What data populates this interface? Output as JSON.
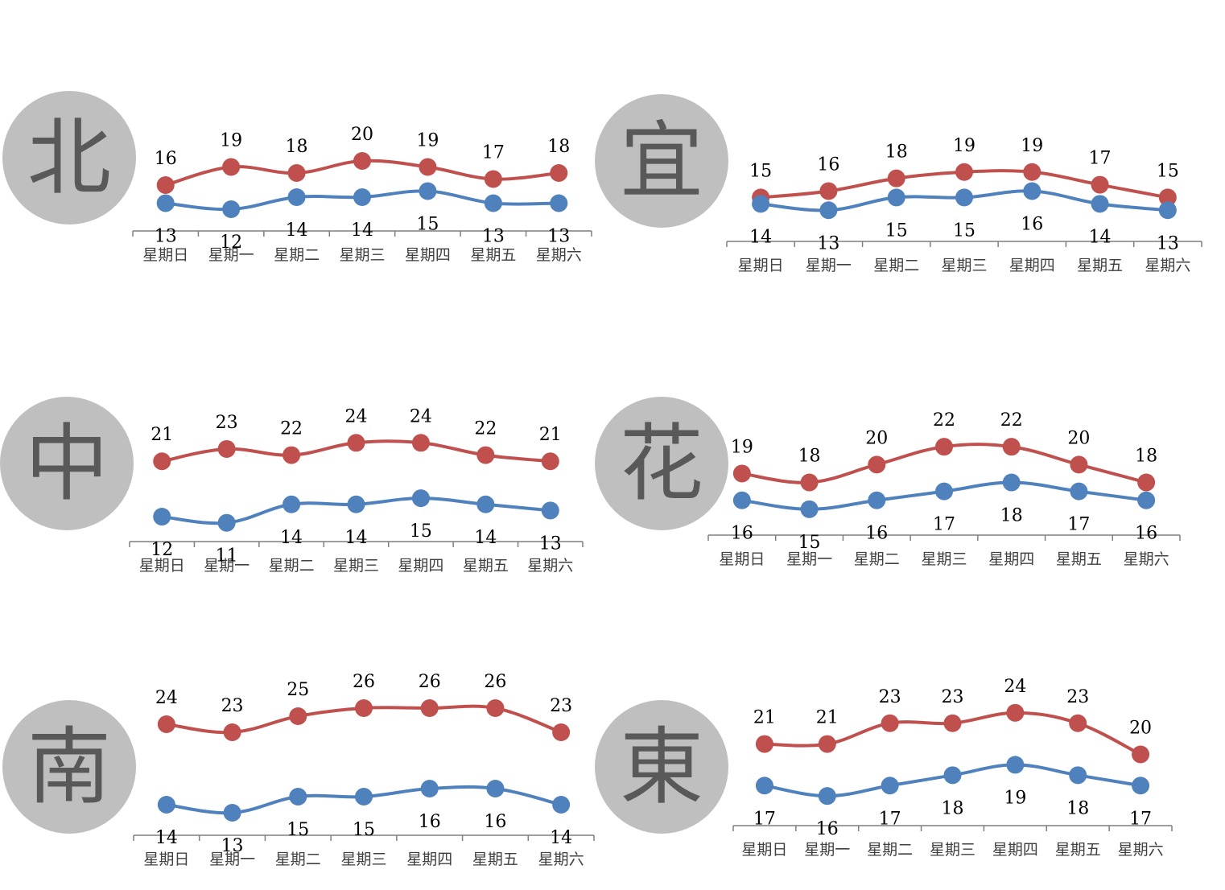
{
  "colors": {
    "high": "#c0504d",
    "low": "#4f81bd",
    "axis": "#7f7f7f",
    "badge": "#bfbfbf",
    "badge_text": "#595959"
  },
  "chart_data": [
    {
      "type": "line",
      "region": "北",
      "categories": [
        "星期日",
        "星期一",
        "星期二",
        "星期三",
        "星期四",
        "星期五",
        "星期六"
      ],
      "series": [
        {
          "key": "high",
          "values": [
            16,
            19,
            18,
            20,
            19,
            17,
            18
          ]
        },
        {
          "key": "low",
          "values": [
            13,
            12,
            14,
            14,
            15,
            13,
            13
          ]
        }
      ],
      "ylim": [
        10,
        22
      ]
    },
    {
      "type": "line",
      "region": "宜",
      "categories": [
        "星期日",
        "星期一",
        "星期二",
        "星期三",
        "星期四",
        "星期五",
        "星期六"
      ],
      "series": [
        {
          "key": "high",
          "values": [
            15,
            16,
            18,
            19,
            19,
            17,
            15
          ]
        },
        {
          "key": "low",
          "values": [
            14,
            13,
            15,
            15,
            16,
            14,
            13
          ]
        }
      ],
      "ylim": [
        10,
        22
      ]
    },
    {
      "type": "line",
      "region": "中",
      "categories": [
        "星期日",
        "星期一",
        "星期二",
        "星期三",
        "星期四",
        "星期五",
        "星期六"
      ],
      "series": [
        {
          "key": "high",
          "values": [
            21,
            23,
            22,
            24,
            24,
            22,
            21
          ]
        },
        {
          "key": "low",
          "values": [
            12,
            11,
            14,
            14,
            15,
            14,
            13
          ]
        }
      ],
      "ylim": [
        9,
        26
      ]
    },
    {
      "type": "line",
      "region": "花",
      "categories": [
        "星期日",
        "星期一",
        "星期二",
        "星期三",
        "星期四",
        "星期五",
        "星期六"
      ],
      "series": [
        {
          "key": "high",
          "values": [
            19,
            18,
            20,
            22,
            22,
            20,
            18
          ]
        },
        {
          "key": "low",
          "values": [
            16,
            15,
            16,
            17,
            18,
            17,
            16
          ]
        }
      ],
      "ylim": [
        13,
        24
      ]
    },
    {
      "type": "line",
      "region": "南",
      "categories": [
        "星期日",
        "星期一",
        "星期二",
        "星期三",
        "星期四",
        "星期五",
        "星期六"
      ],
      "series": [
        {
          "key": "high",
          "values": [
            24,
            23,
            25,
            26,
            26,
            26,
            23
          ]
        },
        {
          "key": "low",
          "values": [
            14,
            13,
            15,
            15,
            16,
            16,
            14
          ]
        }
      ],
      "ylim": [
        11,
        28
      ]
    },
    {
      "type": "line",
      "region": "東",
      "categories": [
        "星期日",
        "星期一",
        "星期二",
        "星期三",
        "星期四",
        "星期五",
        "星期六"
      ],
      "series": [
        {
          "key": "high",
          "values": [
            21,
            21,
            23,
            23,
            24,
            23,
            20
          ]
        },
        {
          "key": "low",
          "values": [
            17,
            16,
            17,
            18,
            19,
            18,
            17
          ]
        }
      ],
      "ylim": [
        14,
        26
      ]
    }
  ]
}
